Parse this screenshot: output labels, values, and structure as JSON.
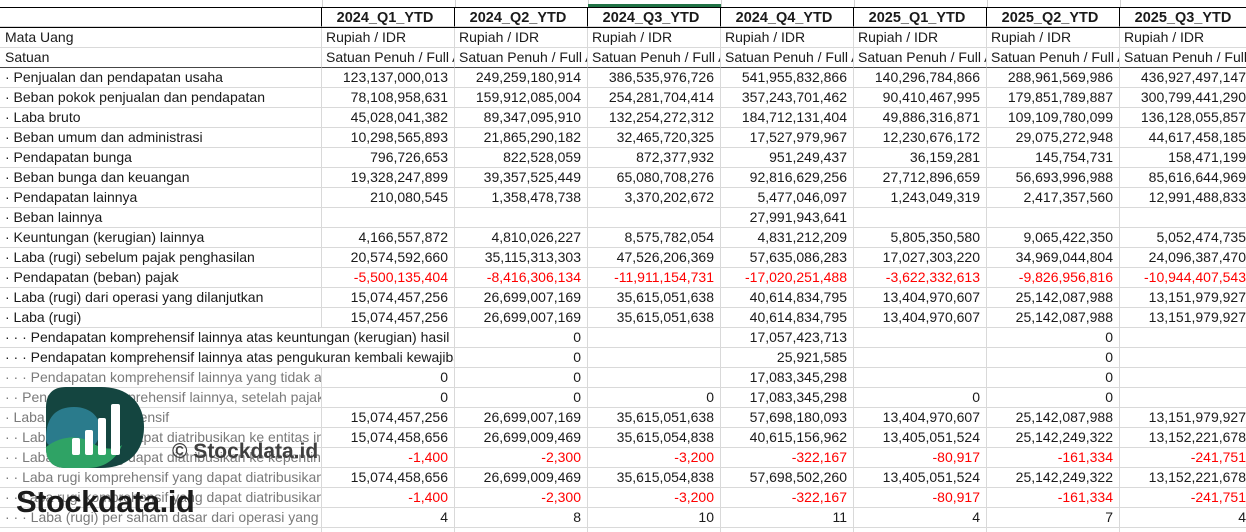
{
  "watermark": {
    "brand": "Stockdata.id",
    "copyright": "© Stockdata.id"
  },
  "colors": {
    "selected_column_indicator": "#217346",
    "negative_value": "#ff0000",
    "gridline": "#d9d9d9",
    "gray_label": "#7a7a7a",
    "logo_dark_teal": "#144540",
    "logo_blue_teal": "#2a7b8c",
    "logo_green": "#2fa365"
  },
  "table": {
    "columns": [
      "2024_Q1_YTD",
      "2024_Q2_YTD",
      "2024_Q3_YTD",
      "2024_Q4_YTD",
      "2025_Q1_YTD",
      "2025_Q2_YTD",
      "2025_Q3_YTD"
    ],
    "selected_column": "2024_Q3_YTD",
    "meta_rows": [
      {
        "label": "Mata Uang",
        "values": [
          "Rupiah / IDR",
          "Rupiah / IDR",
          "Rupiah / IDR",
          "Rupiah / IDR",
          "Rupiah / IDR",
          "Rupiah / IDR",
          "Rupiah / IDR"
        ]
      },
      {
        "label": "Satuan",
        "unit": true,
        "values": [
          "Satuan Penuh / Full A",
          "Satuan Penuh / Full A",
          "Satuan Penuh / Full A",
          "Satuan Penuh / Full A",
          "Satuan Penuh / Full A",
          "Satuan Penuh / Full A",
          "Satuan Penuh / Full A"
        ]
      }
    ],
    "rows": [
      {
        "label": "· Penjualan dan pendapatan usaha",
        "values": [
          "123,137,000,013",
          "249,259,180,914",
          "386,535,976,726",
          "541,955,832,866",
          "140,296,784,866",
          "288,961,569,986",
          "436,927,497,147"
        ]
      },
      {
        "label": "· Beban pokok penjualan dan pendapatan",
        "values": [
          "78,108,958,631",
          "159,912,085,004",
          "254,281,704,414",
          "357,243,701,462",
          "90,410,467,995",
          "179,851,789,887",
          "300,799,441,290"
        ]
      },
      {
        "label": "· Laba bruto",
        "values": [
          "45,028,041,382",
          "89,347,095,910",
          "132,254,272,312",
          "184,712,131,404",
          "49,886,316,871",
          "109,109,780,099",
          "136,128,055,857"
        ]
      },
      {
        "label": "· Beban umum dan administrasi",
        "values": [
          "10,298,565,893",
          "21,865,290,182",
          "32,465,720,325",
          "17,527,979,967",
          "12,230,676,172",
          "29,075,272,948",
          "44,617,458,185"
        ]
      },
      {
        "label": "· Pendapatan bunga",
        "values": [
          "796,726,653",
          "822,528,059",
          "872,377,932",
          "951,249,437",
          "36,159,281",
          "145,754,731",
          "158,471,199"
        ]
      },
      {
        "label": "· Beban bunga dan keuangan",
        "values": [
          "19,328,247,899",
          "39,357,525,449",
          "65,080,708,276",
          "92,816,629,256",
          "27,712,896,659",
          "56,693,996,988",
          "85,616,644,969"
        ]
      },
      {
        "label": "· Pendapatan lainnya",
        "values": [
          "210,080,545",
          "1,358,478,738",
          "3,370,202,672",
          "5,477,046,097",
          "1,243,049,319",
          "2,417,357,560",
          "12,991,488,833"
        ]
      },
      {
        "label": "· Beban lainnya",
        "values": [
          "",
          "",
          "",
          "27,991,943,641",
          "",
          "",
          ""
        ]
      },
      {
        "label": "· Keuntungan (kerugian) lainnya",
        "values": [
          "4,166,557,872",
          "4,810,026,227",
          "8,575,782,054",
          "4,831,212,209",
          "5,805,350,580",
          "9,065,422,350",
          "5,052,474,735"
        ]
      },
      {
        "label": "· Laba (rugi) sebelum pajak penghasilan",
        "values": [
          "20,574,592,660",
          "35,115,313,303",
          "47,526,206,369",
          "57,635,086,283",
          "17,027,303,220",
          "34,969,044,804",
          "24,096,387,470"
        ]
      },
      {
        "label": "· Pendapatan (beban) pajak",
        "values": [
          "-5,500,135,404",
          "-8,416,306,134",
          "-11,911,154,731",
          "-17,020,251,488",
          "-3,622,332,613",
          "-9,826,956,816",
          "-10,944,407,543"
        ]
      },
      {
        "label": "· Laba (rugi) dari operasi yang dilanjutkan",
        "values": [
          "15,074,457,256",
          "26,699,007,169",
          "35,615,051,638",
          "40,614,834,795",
          "13,404,970,607",
          "25,142,087,988",
          "13,151,979,927"
        ]
      },
      {
        "label": "· Laba (rugi)",
        "values": [
          "15,074,457,256",
          "26,699,007,169",
          "35,615,051,638",
          "40,614,834,795",
          "13,404,970,607",
          "25,142,087,988",
          "13,151,979,927"
        ]
      },
      {
        "label": "· · · Pendapatan komprehensif lainnya atas keuntungan (kerugian) hasil re",
        "span2": true,
        "values": [
          "0",
          "",
          "17,057,423,713",
          "",
          "0",
          ""
        ]
      },
      {
        "label": "· · · Pendapatan komprehensif lainnya atas pengukuran kembali kewajiba",
        "span2": true,
        "values": [
          "0",
          "",
          "25,921,585",
          "",
          "0",
          ""
        ]
      },
      {
        "label": "· · · Pendapatan komprehensif lainnya yang tidak ak",
        "gray": true,
        "values": [
          "0",
          "0",
          "",
          "17,083,345,298",
          "",
          "0",
          ""
        ]
      },
      {
        "label": "· · Pendapatan komprehensif lainnya, setelah pajak",
        "gray": true,
        "values": [
          "0",
          "0",
          "0",
          "17,083,345,298",
          "0",
          "0",
          ""
        ]
      },
      {
        "label": "· Laba (rugi) komprehensif",
        "gray": true,
        "values": [
          "15,074,457,256",
          "26,699,007,169",
          "35,615,051,638",
          "57,698,180,093",
          "13,404,970,607",
          "25,142,087,988",
          "13,151,979,927"
        ]
      },
      {
        "label": "· · Laba (rugi) yang dapat diatribusikan ke entitas ind",
        "gray": true,
        "values": [
          "15,074,458,656",
          "26,699,009,469",
          "35,615,054,838",
          "40,615,156,962",
          "13,405,051,524",
          "25,142,249,322",
          "13,152,221,678"
        ]
      },
      {
        "label": "· · Laba (rugi) yang dapat diatribusikan ke kepenting",
        "gray": true,
        "values": [
          "-1,400",
          "-2,300",
          "-3,200",
          "-322,167",
          "-80,917",
          "-161,334",
          "-241,751"
        ]
      },
      {
        "label": "· · Laba rugi komprehensif yang dapat diatribusikan",
        "gray": true,
        "values": [
          "15,074,458,656",
          "26,699,009,469",
          "35,615,054,838",
          "57,698,502,260",
          "13,405,051,524",
          "25,142,249,322",
          "13,152,221,678"
        ]
      },
      {
        "label": "· · Laba rugi komprehensif yang dapat diatribusikan",
        "gray": true,
        "values": [
          "-1,400",
          "-2,300",
          "-3,200",
          "-322,167",
          "-80,917",
          "-161,334",
          "-241,751"
        ]
      },
      {
        "label": "· · · Laba (rugi) per saham dasar dari operasi yang dil",
        "gray": true,
        "values": [
          "4",
          "8",
          "10",
          "11",
          "4",
          "7",
          "4"
        ]
      }
    ]
  }
}
